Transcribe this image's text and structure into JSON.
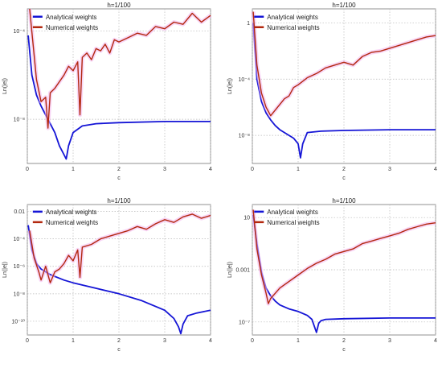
{
  "chart_data": [
    {
      "type": "line",
      "title": "h=1/100",
      "xlabel": "c",
      "ylabel": "Ln(|e|)",
      "xlim": [
        0,
        4
      ],
      "xticks": [
        0,
        1,
        2,
        3,
        4
      ],
      "ylog": true,
      "ylim_log10": [
        -10.0,
        -3.0
      ],
      "ytick_labels": [
        {
          "value": 0.0001,
          "label": "10⁻⁴"
        },
        {
          "value": 1e-08,
          "label": "10⁻⁸"
        }
      ],
      "legend": "top-left",
      "grid": true,
      "series": [
        {
          "name": "Analytical weights",
          "color": "#1515d6",
          "x": [
            0.02,
            0.1,
            0.2,
            0.3,
            0.4,
            0.5,
            0.6,
            0.7,
            0.8,
            0.85,
            0.9,
            1.0,
            1.2,
            1.5,
            2.0,
            3.0,
            4.0
          ],
          "y_log10": [
            -4.2,
            -6.0,
            -6.9,
            -7.4,
            -7.8,
            -8.2,
            -8.6,
            -9.2,
            -9.6,
            -9.8,
            -9.2,
            -8.6,
            -8.3,
            -8.2,
            -8.15,
            -8.1,
            -8.1
          ]
        },
        {
          "name": "Numerical weights",
          "color": "#b3280f",
          "x": [
            0.05,
            0.2,
            0.3,
            0.4,
            0.45,
            0.5,
            0.6,
            0.7,
            0.8,
            0.9,
            1.0,
            1.1,
            1.15,
            1.2,
            1.3,
            1.4,
            1.5,
            1.6,
            1.7,
            1.8,
            1.9,
            2.0,
            2.2,
            2.4,
            2.6,
            2.8,
            3.0,
            3.2,
            3.4,
            3.6,
            3.8,
            4.0
          ],
          "y_log10": [
            -3.0,
            -6.2,
            -7.2,
            -7.0,
            -8.4,
            -6.8,
            -6.6,
            -6.3,
            -6.0,
            -5.6,
            -5.8,
            -5.4,
            -7.8,
            -5.2,
            -5.0,
            -5.3,
            -4.8,
            -4.9,
            -4.6,
            -5.0,
            -4.4,
            -4.5,
            -4.3,
            -4.1,
            -4.2,
            -3.8,
            -3.9,
            -3.6,
            -3.7,
            -3.2,
            -3.6,
            -3.3
          ]
        }
      ]
    },
    {
      "type": "line",
      "title": "h=1/100",
      "xlabel": "c",
      "ylabel": "Ln(|e|)",
      "xlim": [
        0,
        4
      ],
      "xticks": [
        0,
        1,
        2,
        3,
        4
      ],
      "ylog": true,
      "ylim_log10": [
        -10.0,
        1.0
      ],
      "ytick_labels": [
        {
          "value": 1,
          "label": "1"
        },
        {
          "value": 0.0001,
          "label": "10⁻⁴"
        },
        {
          "value": 1e-08,
          "label": "10⁻⁸"
        }
      ],
      "legend": "top-right",
      "grid": true,
      "series": [
        {
          "name": "Analytical weights",
          "color": "#1515d6",
          "x": [
            0.02,
            0.1,
            0.2,
            0.3,
            0.4,
            0.5,
            0.6,
            0.7,
            0.8,
            0.9,
            1.0,
            1.05,
            1.1,
            1.2,
            1.5,
            2.0,
            3.0,
            4.0
          ],
          "y_log10": [
            0.0,
            -4.0,
            -5.6,
            -6.4,
            -6.9,
            -7.3,
            -7.6,
            -7.8,
            -8.0,
            -8.2,
            -8.6,
            -9.6,
            -8.6,
            -7.8,
            -7.7,
            -7.65,
            -7.6,
            -7.6
          ]
        },
        {
          "name": "Numerical weights",
          "color": "#b3280f",
          "x": [
            0.02,
            0.1,
            0.2,
            0.3,
            0.4,
            0.5,
            0.6,
            0.7,
            0.8,
            0.9,
            1.0,
            1.2,
            1.4,
            1.6,
            1.8,
            2.0,
            2.2,
            2.4,
            2.6,
            2.8,
            3.0,
            3.2,
            3.4,
            3.6,
            3.8,
            4.0
          ],
          "y_log10": [
            0.8,
            -3.0,
            -5.0,
            -6.0,
            -6.6,
            -6.2,
            -5.8,
            -5.4,
            -5.2,
            -4.6,
            -4.4,
            -3.9,
            -3.6,
            -3.2,
            -3.0,
            -2.8,
            -3.0,
            -2.4,
            -2.1,
            -2.0,
            -1.8,
            -1.6,
            -1.4,
            -1.2,
            -1.0,
            -0.9
          ]
        }
      ]
    },
    {
      "type": "line",
      "title": "h=1/100",
      "xlabel": "c",
      "ylabel": "Ln(|e|)",
      "xlim": [
        0,
        4
      ],
      "xticks": [
        0,
        1,
        2,
        3,
        4
      ],
      "ylog": true,
      "ylim_log10": [
        -11.0,
        -1.5
      ],
      "ytick_labels": [
        {
          "value": 0.01,
          "label": "0.01"
        },
        {
          "value": 0.0001,
          "label": "10⁻⁴"
        },
        {
          "value": 1e-06,
          "label": "10⁻⁶"
        },
        {
          "value": 1e-08,
          "label": "10⁻⁸"
        },
        {
          "value": 1e-10,
          "label": "10⁻¹⁰"
        }
      ],
      "legend": "top-left",
      "grid": true,
      "series": [
        {
          "name": "Analytical weights",
          "color": "#1515d6",
          "x": [
            0.02,
            0.1,
            0.2,
            0.3,
            0.5,
            0.8,
            1.0,
            1.5,
            2.0,
            2.5,
            3.0,
            3.2,
            3.3,
            3.35,
            3.4,
            3.5,
            3.7,
            4.0
          ],
          "y_log10": [
            -3.0,
            -4.8,
            -5.8,
            -6.2,
            -6.6,
            -7.0,
            -7.2,
            -7.6,
            -8.0,
            -8.5,
            -9.2,
            -9.8,
            -10.4,
            -10.9,
            -10.2,
            -9.6,
            -9.4,
            -9.2
          ]
        },
        {
          "name": "Numerical weights",
          "color": "#b3280f",
          "x": [
            0.05,
            0.15,
            0.25,
            0.3,
            0.4,
            0.5,
            0.6,
            0.7,
            0.8,
            0.9,
            1.0,
            1.1,
            1.15,
            1.2,
            1.4,
            1.6,
            1.8,
            2.0,
            2.2,
            2.4,
            2.6,
            2.8,
            3.0,
            3.2,
            3.4,
            3.6,
            3.8,
            4.0
          ],
          "y_log10": [
            -3.4,
            -5.4,
            -6.4,
            -7.0,
            -6.0,
            -7.2,
            -6.4,
            -6.2,
            -5.8,
            -5.2,
            -5.6,
            -4.8,
            -6.8,
            -4.6,
            -4.4,
            -4.0,
            -3.8,
            -3.6,
            -3.4,
            -3.1,
            -3.3,
            -2.9,
            -2.6,
            -2.8,
            -2.4,
            -2.2,
            -2.5,
            -2.3
          ]
        }
      ]
    },
    {
      "type": "line",
      "title": "h=1/100",
      "xlabel": "c",
      "ylabel": "Ln(|e|)",
      "xlim": [
        0,
        4
      ],
      "xticks": [
        0,
        1,
        2,
        3,
        4
      ],
      "ylog": true,
      "ylim_log10": [
        -8.0,
        2.0
      ],
      "ytick_labels": [
        {
          "value": 10,
          "label": "10"
        },
        {
          "value": 0.001,
          "label": "0.001"
        },
        {
          "value": 1e-07,
          "label": "10⁻⁷"
        }
      ],
      "legend": "top-right",
      "grid": true,
      "series": [
        {
          "name": "Analytical weights",
          "color": "#1515d6",
          "x": [
            0.02,
            0.1,
            0.2,
            0.3,
            0.4,
            0.5,
            0.6,
            0.8,
            1.0,
            1.2,
            1.3,
            1.4,
            1.45,
            1.5,
            1.6,
            2.0,
            3.0,
            4.0
          ],
          "y_log10": [
            1.2,
            -1.0,
            -3.2,
            -4.4,
            -5.0,
            -5.4,
            -5.7,
            -6.0,
            -6.2,
            -6.5,
            -6.8,
            -7.8,
            -7.1,
            -6.9,
            -6.8,
            -6.75,
            -6.7,
            -6.7
          ]
        },
        {
          "name": "Numerical weights",
          "color": "#b3280f",
          "x": [
            0.02,
            0.1,
            0.2,
            0.3,
            0.35,
            0.4,
            0.5,
            0.6,
            0.8,
            1.0,
            1.2,
            1.4,
            1.6,
            1.8,
            2.0,
            2.2,
            2.4,
            2.6,
            2.8,
            3.0,
            3.2,
            3.4,
            3.6,
            3.8,
            4.0
          ],
          "y_log10": [
            1.6,
            -1.4,
            -3.4,
            -4.8,
            -5.6,
            -5.2,
            -4.8,
            -4.4,
            -3.9,
            -3.4,
            -2.9,
            -2.5,
            -2.2,
            -1.8,
            -1.6,
            -1.4,
            -1.0,
            -0.8,
            -0.6,
            -0.4,
            -0.2,
            0.1,
            0.3,
            0.5,
            0.6
          ]
        }
      ]
    }
  ]
}
